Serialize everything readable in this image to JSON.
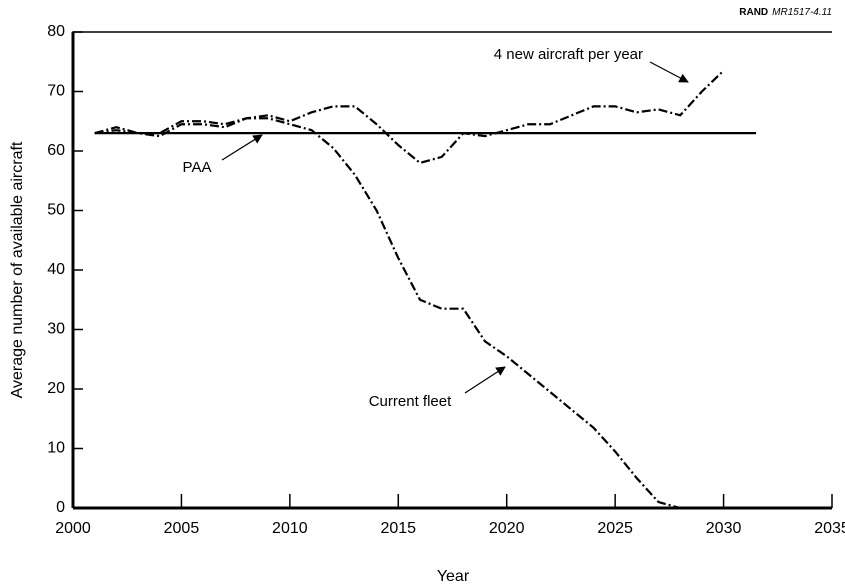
{
  "chart_data": {
    "type": "line",
    "source": {
      "org": "RAND",
      "id": "MR1517-4.11"
    },
    "xlabel": "Year",
    "ylabel": "Average number of available aircraft",
    "xlim": [
      2000,
      2035
    ],
    "xticks": [
      2000,
      2005,
      2010,
      2015,
      2020,
      2025,
      2030,
      2035
    ],
    "ylim": [
      0,
      80
    ],
    "yticks": [
      0,
      10,
      20,
      30,
      40,
      50,
      60,
      70,
      80
    ],
    "series": [
      {
        "name": "PAA",
        "color": "#000000",
        "dash": "solid",
        "x": [
          2001,
          2031.5
        ],
        "values": [
          63,
          63
        ]
      },
      {
        "name": "Current fleet",
        "color": "#000000",
        "dash": "dash-dot",
        "x": [
          2001,
          2002,
          2003,
          2004,
          2005,
          2006,
          2007,
          2008,
          2009,
          2010,
          2011,
          2012,
          2013,
          2014,
          2015,
          2016,
          2017,
          2018,
          2019,
          2020,
          2021,
          2022,
          2023,
          2024,
          2025,
          2026,
          2027,
          2028,
          2029,
          2030
        ],
        "values": [
          63,
          63.5,
          63,
          62.5,
          64.5,
          64.5,
          64,
          65.5,
          65.5,
          64.5,
          63.5,
          60.5,
          56,
          50,
          42,
          35,
          33.5,
          33.5,
          28,
          25.5,
          22.5,
          19.5,
          16.5,
          13.5,
          9.5,
          5,
          1,
          0,
          0,
          0
        ]
      },
      {
        "name": "4 new aircraft per year",
        "color": "#000000",
        "dash": "dash-dot",
        "x": [
          2001,
          2002,
          2003,
          2004,
          2005,
          2006,
          2007,
          2008,
          2009,
          2010,
          2011,
          2012,
          2013,
          2014,
          2015,
          2016,
          2017,
          2018,
          2019,
          2020,
          2021,
          2022,
          2023,
          2024,
          2025,
          2026,
          2027,
          2028,
          2029,
          2030
        ],
        "values": [
          63,
          64,
          63,
          63,
          65,
          65,
          64.5,
          65.5,
          66,
          65,
          66.5,
          67.5,
          67.5,
          64.5,
          61,
          58,
          59,
          63,
          62.5,
          63.5,
          64.5,
          64.5,
          66,
          67.5,
          67.5,
          66.5,
          67,
          66,
          70,
          73.5
        ]
      }
    ]
  }
}
